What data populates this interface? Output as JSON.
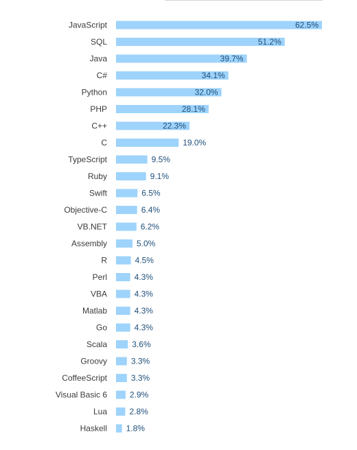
{
  "colors": {
    "bar": "#9ed3fb",
    "label": "#3b3b3b",
    "value_text": "#1f4f7a",
    "value_text_inside": "#1f4f7a"
  },
  "chart_data": {
    "type": "bar",
    "orientation": "horizontal",
    "title": "",
    "xlabel": "",
    "ylabel": "",
    "xlim": [
      0,
      62.5
    ],
    "grid": false,
    "legend": "none",
    "value_format": "{v}%",
    "categories": [
      "JavaScript",
      "SQL",
      "Java",
      "C#",
      "Python",
      "PHP",
      "C++",
      "C",
      "TypeScript",
      "Ruby",
      "Swift",
      "Objective-C",
      "VB.NET",
      "Assembly",
      "R",
      "Perl",
      "VBA",
      "Matlab",
      "Go",
      "Scala",
      "Groovy",
      "CoffeeScript",
      "Visual Basic 6",
      "Lua",
      "Haskell"
    ],
    "values": [
      62.5,
      51.2,
      39.7,
      34.1,
      32.0,
      28.1,
      22.3,
      19.0,
      9.5,
      9.1,
      6.5,
      6.4,
      6.2,
      5.0,
      4.5,
      4.3,
      4.3,
      4.3,
      4.3,
      3.6,
      3.3,
      3.3,
      2.9,
      2.8,
      1.8
    ],
    "value_labels": [
      "62.5%",
      "51.2%",
      "39.7%",
      "34.1%",
      "32.0%",
      "28.1%",
      "22.3%",
      "19.0%",
      "9.5%",
      "9.1%",
      "6.5%",
      "6.4%",
      "6.2%",
      "5.0%",
      "4.5%",
      "4.3%",
      "4.3%",
      "4.3%",
      "4.3%",
      "3.6%",
      "3.3%",
      "3.3%",
      "2.9%",
      "2.8%",
      "1.8%"
    ]
  }
}
